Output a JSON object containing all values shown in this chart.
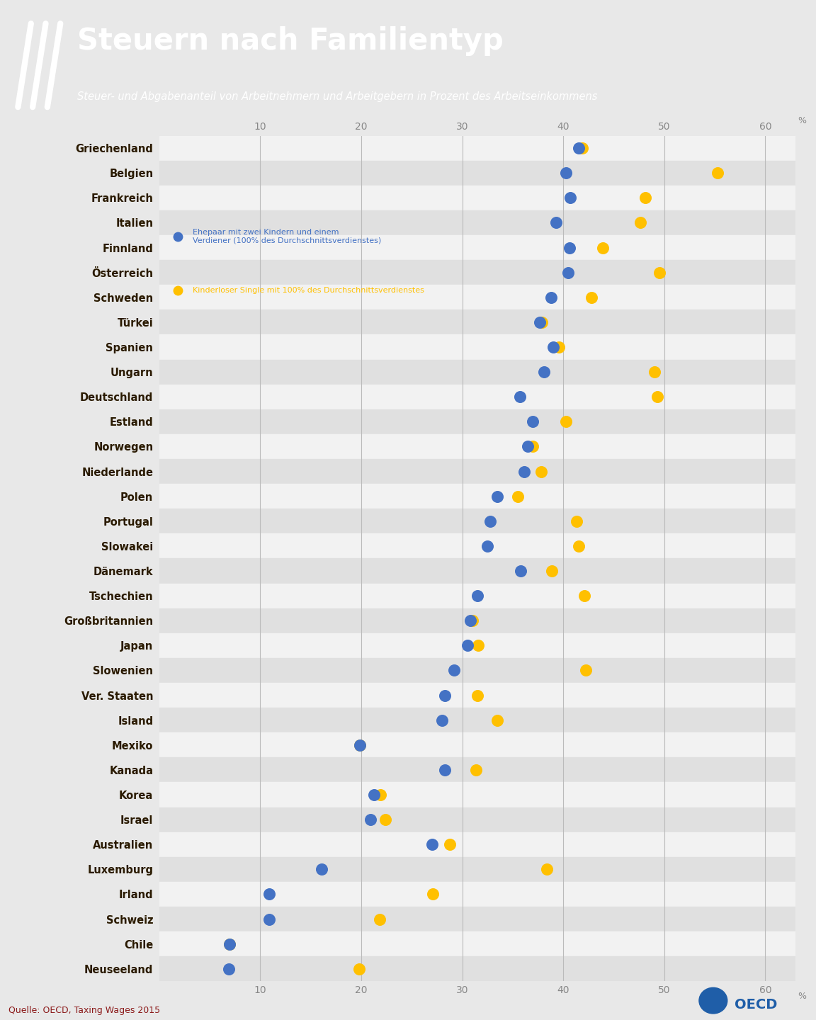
{
  "title": "Steuern nach Familientyp",
  "subtitle": "Steuer- und Abgabenanteil von Arbeitnehmern und Arbeitgebern in Prozent des Arbeitseinkommens",
  "source": "Quelle: OECD, Taxing Wages 2015",
  "legend_blue_line1": "Ehepaar mit zwei Kindern und einem",
  "legend_blue_line2": "Verdiener (100% des Durchschnittsverdienstes)",
  "legend_orange": "Kinderloser Single mit 100% des Durchschnittsverdienstes",
  "header_bg": "#8B1A1A",
  "plot_bg": "#E8E8E8",
  "row_light": "#F2F2F2",
  "row_dark": "#E0E0E0",
  "blue_color": "#4472C4",
  "orange_color": "#FFC000",
  "xlim_min": 0,
  "xlim_max": 63,
  "xticks": [
    10,
    20,
    30,
    40,
    50,
    60
  ],
  "countries": [
    "Griechenland",
    "Belgien",
    "Frankreich",
    "Italien",
    "Finnland",
    "Österreich",
    "Schweden",
    "Türkei",
    "Spanien",
    "Ungarn",
    "Deutschland",
    "Estland",
    "Norwegen",
    "Niederlande",
    "Polen",
    "Portugal",
    "Slowakei",
    "Dänemark",
    "Tschechien",
    "Großbritannien",
    "Japan",
    "Slowenien",
    "Ver. Staaten",
    "Island",
    "Mexiko",
    "Kanada",
    "Korea",
    "Israel",
    "Australien",
    "Luxemburg",
    "Irland",
    "Schweiz",
    "Chile",
    "Neuseeland"
  ],
  "blue_values": [
    41.5,
    40.3,
    40.7,
    39.3,
    40.6,
    40.5,
    38.8,
    37.7,
    39.0,
    38.1,
    35.7,
    37.0,
    36.5,
    36.1,
    33.5,
    32.8,
    32.5,
    35.8,
    31.5,
    30.8,
    30.5,
    29.2,
    28.3,
    28.0,
    19.9,
    28.3,
    21.3,
    20.9,
    27.0,
    16.1,
    10.9,
    10.9,
    7.0,
    6.9
  ],
  "orange_values": [
    41.9,
    55.3,
    48.1,
    47.6,
    43.9,
    49.5,
    42.8,
    37.9,
    39.6,
    49.0,
    49.3,
    40.3,
    37.0,
    37.8,
    35.5,
    41.3,
    41.5,
    38.9,
    42.1,
    31.0,
    31.6,
    42.2,
    31.5,
    33.5,
    19.9,
    31.4,
    21.9,
    22.4,
    28.8,
    38.4,
    27.1,
    21.8,
    7.0,
    19.8
  ]
}
